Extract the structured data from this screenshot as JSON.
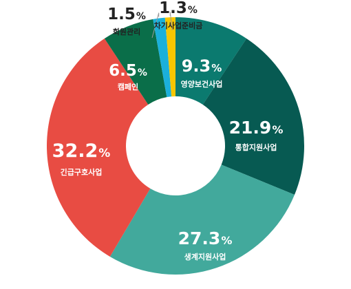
{
  "chart_data": {
    "type": "donut",
    "unit": "%",
    "slices": [
      {
        "label": "영양보건사업",
        "value": 9.3,
        "color": "#0b7a6f",
        "label_color": "#ffffff"
      },
      {
        "label": "통합지원사업",
        "value": 21.9,
        "color": "#075a52",
        "label_color": "#ffffff"
      },
      {
        "label": "생계지원사업",
        "value": 27.3,
        "color": "#42a99c",
        "label_color": "#ffffff"
      },
      {
        "label": "긴급구호사업",
        "value": 32.2,
        "color": "#e84c43",
        "label_color": "#ffffff"
      },
      {
        "label": "캠페인",
        "value": 6.5,
        "color": "#0a6e49",
        "label_color": "#ffffff"
      },
      {
        "label": "회원관리",
        "value": 1.5,
        "color": "#1bb0da",
        "label_color": "#222222"
      },
      {
        "label": "차기사업준비금",
        "value": 1.3,
        "color": "#f7c600",
        "label_color": "#222222"
      }
    ]
  }
}
